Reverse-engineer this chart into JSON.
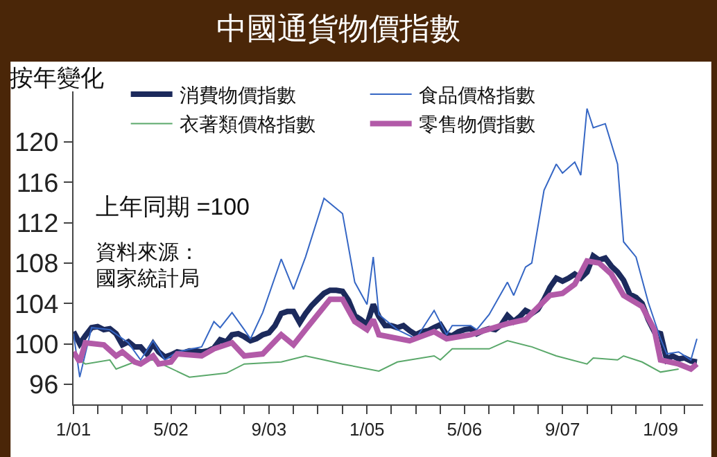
{
  "chart_data": {
    "type": "line",
    "title": "中國通貨物價指數",
    "ylabel": "按年變化",
    "annotations": [
      "上年同期 =100",
      "資料來源：",
      "國家統計局"
    ],
    "x": [
      "2001-01",
      "2001-02",
      "2001-03",
      "2001-04",
      "2001-05",
      "2001-06",
      "2001-07",
      "2001-08",
      "2001-09",
      "2001-10",
      "2001-11",
      "2001-12",
      "2002-01",
      "2002-02",
      "2002-03",
      "2002-04",
      "2002-05",
      "2002-06",
      "2002-07",
      "2002-08",
      "2002-09",
      "2002-10",
      "2002-11",
      "2002-12",
      "2003-01",
      "2003-02",
      "2003-03",
      "2003-04",
      "2003-05",
      "2003-06",
      "2003-07",
      "2003-08",
      "2003-09",
      "2003-10",
      "2003-11",
      "2003-12",
      "2004-01",
      "2004-02",
      "2004-03",
      "2004-04",
      "2004-05",
      "2004-06",
      "2004-07",
      "2004-08",
      "2004-09",
      "2004-10",
      "2004-11",
      "2004-12",
      "2005-01",
      "2005-02",
      "2005-03",
      "2005-04",
      "2005-05",
      "2005-06",
      "2005-07",
      "2005-08",
      "2005-09",
      "2005-10",
      "2005-11",
      "2005-12",
      "2006-01",
      "2006-02",
      "2006-03",
      "2006-04",
      "2006-05",
      "2006-06",
      "2006-07",
      "2006-08",
      "2006-09",
      "2006-10",
      "2006-11",
      "2006-12",
      "2007-01",
      "2007-02",
      "2007-03",
      "2007-04",
      "2007-05",
      "2007-06",
      "2007-07",
      "2007-08",
      "2007-09",
      "2007-10",
      "2007-11",
      "2007-12",
      "2008-01",
      "2008-02",
      "2008-03",
      "2008-04",
      "2008-05",
      "2008-06",
      "2008-07",
      "2008-08",
      "2008-09",
      "2008-10",
      "2008-11",
      "2008-12",
      "2009-01",
      "2009-02",
      "2009-03",
      "2009-04",
      "2009-05",
      "2009-06",
      "2009-07"
    ],
    "series": [
      {
        "name": "消費物價指數",
        "color": "#1c2a5c",
        "values": [
          101.2,
          100.0,
          100.8,
          101.6,
          101.7,
          101.4,
          101.5,
          101.0,
          99.9,
          100.2,
          99.7,
          99.7,
          99.0,
          100.0,
          99.2,
          98.7,
          98.9,
          99.2,
          99.1,
          99.3,
          99.3,
          99.2,
          99.3,
          99.6,
          100.4,
          100.2,
          100.9,
          101.0,
          100.7,
          100.3,
          100.5,
          100.9,
          101.1,
          101.8,
          103.0,
          103.2,
          103.2,
          102.1,
          103.0,
          103.8,
          104.4,
          105.0,
          105.3,
          105.3,
          105.2,
          104.3,
          102.8,
          102.4,
          101.9,
          103.9,
          102.7,
          101.8,
          101.8,
          101.6,
          101.8,
          101.3,
          100.9,
          101.2,
          101.3,
          101.6,
          101.9,
          100.9,
          100.8,
          101.2,
          101.4,
          101.5,
          101.0,
          101.3,
          101.5,
          101.4,
          101.9,
          102.8,
          102.2,
          102.7,
          103.3,
          103.0,
          103.4,
          104.4,
          105.6,
          106.5,
          106.2,
          106.5,
          106.9,
          106.5,
          107.1,
          108.7,
          108.3,
          108.5,
          107.7,
          107.1,
          106.3,
          104.9,
          104.6,
          104.0,
          102.4,
          101.2,
          101.0,
          98.4,
          98.8,
          98.5,
          98.6,
          98.3,
          98.2
        ]
      },
      {
        "name": "食品價格指數",
        "color": "#3566c4",
        "x": [
          "2001-01",
          "2001-02",
          "2001-04",
          "2001-07",
          "2001-10",
          "2001-12",
          "2002-02",
          "2002-04",
          "2002-06",
          "2002-10",
          "2002-12",
          "2003-01",
          "2003-03",
          "2003-05",
          "2003-06",
          "2003-08",
          "2003-11",
          "2004-01",
          "2004-03",
          "2004-06",
          "2004-09",
          "2004-11",
          "2005-01",
          "2005-02",
          "2005-03",
          "2005-06",
          "2005-09",
          "2005-12",
          "2006-02",
          "2006-03",
          "2006-06",
          "2006-07",
          "2006-09",
          "2006-12",
          "2007-01",
          "2007-03",
          "2007-04",
          "2007-06",
          "2007-08",
          "2007-09",
          "2007-11",
          "2007-12",
          "2008-01",
          "2008-02",
          "2008-04",
          "2008-06",
          "2008-07",
          "2008-09",
          "2008-11",
          "2009-01",
          "2009-02",
          "2009-04",
          "2009-06",
          "2009-07"
        ],
        "values": [
          101.0,
          96.7,
          101.6,
          101.4,
          100.1,
          98.4,
          100.3,
          98.4,
          99.2,
          99.7,
          102.2,
          101.6,
          103.1,
          101.4,
          100.5,
          103.1,
          108.4,
          105.4,
          108.6,
          114.4,
          112.9,
          106.1,
          103.9,
          108.6,
          102.9,
          101.4,
          100.5,
          103.3,
          100.9,
          101.8,
          101.8,
          101.4,
          102.9,
          106.1,
          104.8,
          107.6,
          108.0,
          115.2,
          117.8,
          116.9,
          118.0,
          116.7,
          123.3,
          121.4,
          121.8,
          117.8,
          110.1,
          108.6,
          104.1,
          100.5,
          99.0,
          99.2,
          98.4,
          100.5
        ]
      },
      {
        "name": "衣著類價格指數",
        "color": "#5aa86a",
        "x": [
          "2001-01",
          "2001-03",
          "2001-07",
          "2001-08",
          "2001-11",
          "2002-02",
          "2002-08",
          "2003-02",
          "2003-05",
          "2003-11",
          "2004-03",
          "2004-06",
          "2004-09",
          "2005-03",
          "2005-06",
          "2005-12",
          "2006-01",
          "2006-03",
          "2006-09",
          "2006-12",
          "2007-04",
          "2007-08",
          "2008-01",
          "2008-02",
          "2008-06",
          "2008-07",
          "2008-10",
          "2009-01",
          "2009-04"
        ],
        "values": [
          98.8,
          98.0,
          98.4,
          97.5,
          98.2,
          98.4,
          96.7,
          97.1,
          98.0,
          98.2,
          98.8,
          98.4,
          98.0,
          97.3,
          98.2,
          98.8,
          98.4,
          99.5,
          99.5,
          100.3,
          99.7,
          98.8,
          98.0,
          98.6,
          98.4,
          98.8,
          98.2,
          97.2,
          97.5
        ]
      },
      {
        "name": "零售物價指數",
        "color": "#b25aa8",
        "x": [
          "2001-01",
          "2001-02",
          "2001-03",
          "2001-06",
          "2001-08",
          "2001-09",
          "2001-11",
          "2001-12",
          "2002-02",
          "2002-03",
          "2002-05",
          "2002-06",
          "2002-10",
          "2002-12",
          "2003-03",
          "2003-05",
          "2003-08",
          "2003-11",
          "2004-01",
          "2004-03",
          "2004-07",
          "2004-09",
          "2004-11",
          "2005-01",
          "2005-02",
          "2005-03",
          "2005-08",
          "2005-12",
          "2006-02",
          "2006-06",
          "2006-12",
          "2007-03",
          "2007-07",
          "2007-09",
          "2007-11",
          "2008-01",
          "2008-03",
          "2008-05",
          "2008-07",
          "2008-10",
          "2008-12",
          "2009-01",
          "2009-04",
          "2009-06",
          "2009-07"
        ],
        "values": [
          99.2,
          98.2,
          100.1,
          99.9,
          98.8,
          99.2,
          98.2,
          98.0,
          98.8,
          98.0,
          98.2,
          99.0,
          98.8,
          99.5,
          100.1,
          98.8,
          99.0,
          100.9,
          99.9,
          101.4,
          104.4,
          104.4,
          102.2,
          101.4,
          102.4,
          100.9,
          100.3,
          101.2,
          100.5,
          100.9,
          102.0,
          102.4,
          104.8,
          105.0,
          105.9,
          108.2,
          108.0,
          106.9,
          104.8,
          103.7,
          101.4,
          98.4,
          98.0,
          97.5,
          98.0
        ]
      }
    ],
    "xlim": [
      "2001-01",
      "2009-08"
    ],
    "xticks": [
      {
        "value": "2001-01",
        "label": "1/01"
      },
      {
        "value": "2001-05",
        "label": null
      },
      {
        "value": "2001-09",
        "label": null
      },
      {
        "value": "2002-01",
        "label": null
      },
      {
        "value": "2002-05",
        "label": "5/02"
      },
      {
        "value": "2002-09",
        "label": null
      },
      {
        "value": "2003-01",
        "label": null
      },
      {
        "value": "2003-05",
        "label": null
      },
      {
        "value": "2003-09",
        "label": "9/03"
      },
      {
        "value": "2004-01",
        "label": null
      },
      {
        "value": "2004-05",
        "label": null
      },
      {
        "value": "2004-09",
        "label": null
      },
      {
        "value": "2005-01",
        "label": "1/05"
      },
      {
        "value": "2005-05",
        "label": null
      },
      {
        "value": "2005-09",
        "label": null
      },
      {
        "value": "2006-01",
        "label": null
      },
      {
        "value": "2006-05",
        "label": "5/06"
      },
      {
        "value": "2006-09",
        "label": null
      },
      {
        "value": "2007-01",
        "label": null
      },
      {
        "value": "2007-05",
        "label": null
      },
      {
        "value": "2007-09",
        "label": "9/07"
      },
      {
        "value": "2008-01",
        "label": null
      },
      {
        "value": "2008-05",
        "label": null
      },
      {
        "value": "2008-09",
        "label": null
      },
      {
        "value": "2009-01",
        "label": "1/09"
      },
      {
        "value": "2009-05",
        "label": null
      }
    ],
    "ylim": [
      94,
      125
    ],
    "yticks": [
      96,
      100,
      104,
      108,
      112,
      116,
      120
    ],
    "legend": "top",
    "marker": "none",
    "line_style": "solid"
  }
}
